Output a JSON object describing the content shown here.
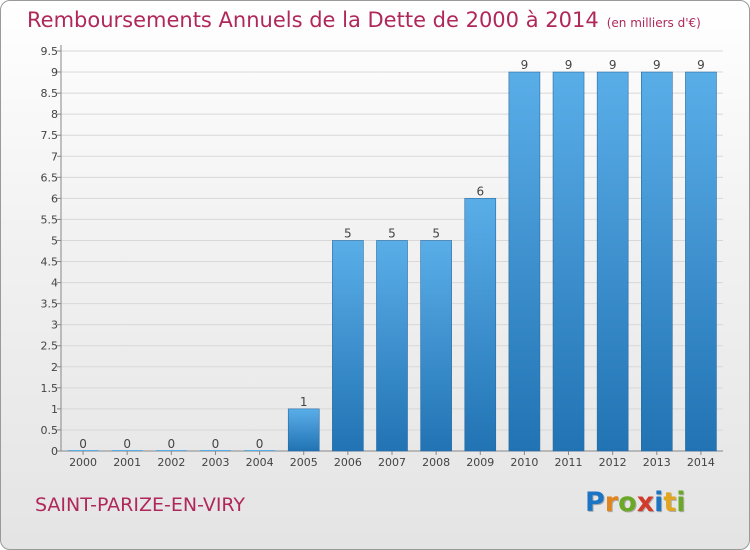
{
  "title": "Remboursements Annuels de la Dette de 2000 à 2014",
  "unit": "(en milliers d'€)",
  "commune": "SAINT-PARIZE-EN-VIRY",
  "logo": "Proxiti",
  "colors": {
    "title": "#b0285a",
    "bar_light": "#5aaee8",
    "bar_dark": "#2173b3",
    "grid": "#d8d8d8"
  },
  "chart_data": {
    "type": "bar",
    "categories": [
      "2000",
      "2001",
      "2002",
      "2003",
      "2004",
      "2005",
      "2006",
      "2007",
      "2008",
      "2009",
      "2010",
      "2011",
      "2012",
      "2013",
      "2014"
    ],
    "values": [
      0,
      0,
      0,
      0,
      0,
      1,
      5,
      5,
      5,
      6,
      9,
      9,
      9,
      9,
      9
    ],
    "data_labels": [
      "0",
      "0",
      "0",
      "0",
      "0",
      "1",
      "5",
      "5",
      "5",
      "6",
      "9",
      "9",
      "9",
      "9",
      "9"
    ],
    "y_ticks": [
      "0",
      "0.5",
      "1",
      "1.5",
      "2",
      "2.5",
      "3",
      "3.5",
      "4",
      "4.5",
      "5",
      "5.5",
      "6",
      "6.5",
      "7",
      "7.5",
      "8",
      "8.5",
      "9",
      "9.5"
    ],
    "ylim": [
      0,
      9.5
    ],
    "grid": true
  }
}
